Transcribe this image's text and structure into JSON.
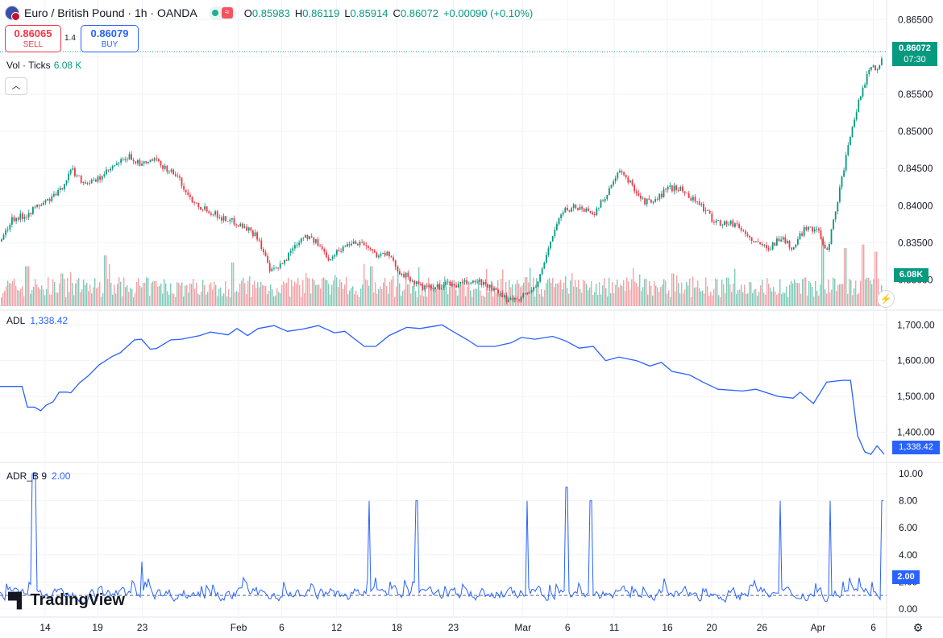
{
  "header": {
    "symbol": "Euro / British Pound · 1h · OANDA",
    "ohlc": [
      {
        "k": "O",
        "v": "0.85983"
      },
      {
        "k": "H",
        "v": "0.86119"
      },
      {
        "k": "L",
        "v": "0.85914"
      },
      {
        "k": "C",
        "v": "0.86072"
      },
      {
        "k": "",
        "v": "+0.00090 (+0.10%)"
      }
    ]
  },
  "trade": {
    "sell_price": "0.86065",
    "sell_label": "SELL",
    "spread": "1.4",
    "buy_price": "0.86079",
    "buy_label": "BUY"
  },
  "volume_legend": {
    "label": "Vol · Ticks",
    "value": "6.08 K"
  },
  "adl_legend": {
    "label": "ADL",
    "value": "1,338.42"
  },
  "adr_legend": {
    "label": "ADR_B 9",
    "value": "2.00"
  },
  "badges": {
    "last_price": "0.86072",
    "countdown": "07:30",
    "volume": "6.08K",
    "adl": "1,338.42",
    "adr": "2.00"
  },
  "colors": {
    "up": "#089981",
    "down": "#f23645",
    "indicator": "#2962ff",
    "grid": "#f0f3fa"
  },
  "brand": "TradingView",
  "chart_data": [
    {
      "type": "line",
      "name": "price",
      "title": "Euro / British Pound · 1h · OANDA",
      "y_ticks": [
        "0.86500",
        "0.86000",
        "0.85500",
        "0.85000",
        "0.84500",
        "0.84000",
        "0.83500",
        "0.83000"
      ],
      "y_tick_values": [
        0.865,
        0.86,
        0.855,
        0.85,
        0.845,
        0.84,
        0.835,
        0.83
      ],
      "ylim": [
        0.8265,
        0.8668
      ],
      "x_ticks": [
        "14",
        "19",
        "23",
        "Feb",
        "6",
        "12",
        "18",
        "23",
        "Mar",
        "6",
        "11",
        "16",
        "20",
        "26",
        "Apr",
        "6"
      ],
      "x_tick_pos": [
        0.0511,
        0.1104,
        0.161,
        0.2699,
        0.3186,
        0.3807,
        0.4489,
        0.5128,
        0.5914,
        0.6419,
        0.6946,
        0.7548,
        0.805,
        0.8618,
        0.9252,
        0.9878
      ],
      "x_positions": [
        0.0,
        0.013,
        0.026,
        0.04,
        0.053,
        0.066,
        0.08,
        0.093,
        0.106,
        0.119,
        0.132,
        0.146,
        0.159,
        0.172,
        0.185,
        0.199,
        0.212,
        0.225,
        0.238,
        0.251,
        0.265,
        0.278,
        0.291,
        0.305,
        0.318,
        0.331,
        0.344,
        0.357,
        0.371,
        0.384,
        0.397,
        0.41,
        0.423,
        0.437,
        0.45,
        0.463,
        0.476,
        0.49,
        0.503,
        0.516,
        0.529,
        0.542,
        0.556,
        0.569,
        0.582,
        0.595,
        0.608,
        0.621,
        0.634,
        0.647,
        0.66,
        0.673,
        0.687,
        0.7,
        0.713,
        0.726,
        0.739,
        0.752,
        0.765,
        0.778,
        0.791,
        0.805,
        0.818,
        0.831,
        0.844,
        0.857,
        0.87,
        0.883,
        0.896,
        0.91,
        0.923,
        0.935,
        0.945,
        0.955,
        0.965,
        0.975,
        0.985,
        0.992,
        1.0
      ],
      "values": [
        0.8352,
        0.8383,
        0.8386,
        0.8398,
        0.8407,
        0.8418,
        0.8449,
        0.8432,
        0.8432,
        0.8444,
        0.8456,
        0.8466,
        0.8454,
        0.8462,
        0.8452,
        0.8441,
        0.8413,
        0.84,
        0.8392,
        0.8383,
        0.8378,
        0.837,
        0.8358,
        0.831,
        0.832,
        0.8345,
        0.8362,
        0.835,
        0.833,
        0.8341,
        0.8352,
        0.835,
        0.8335,
        0.8335,
        0.8313,
        0.8301,
        0.829,
        0.8288,
        0.8295,
        0.8293,
        0.8297,
        0.8298,
        0.8288,
        0.8275,
        0.8275,
        0.8281,
        0.8296,
        0.835,
        0.839,
        0.8399,
        0.8395,
        0.8391,
        0.842,
        0.8445,
        0.843,
        0.8407,
        0.8404,
        0.8422,
        0.8425,
        0.8414,
        0.8402,
        0.8381,
        0.8376,
        0.8376,
        0.836,
        0.8347,
        0.8345,
        0.8358,
        0.8341,
        0.8372,
        0.8368,
        0.834,
        0.8399,
        0.8458,
        0.8514,
        0.856,
        0.8589,
        0.8585,
        0.8607
      ],
      "last": 0.86072
    },
    {
      "type": "bar",
      "name": "volume",
      "y_unit": "ticks",
      "last": 6080,
      "spikes": [
        [
          0.03,
          0.55
        ],
        [
          0.07,
          0.45
        ],
        [
          0.118,
          0.7
        ],
        [
          0.263,
          0.6
        ],
        [
          0.42,
          0.55
        ],
        [
          0.595,
          0.4
        ],
        [
          0.76,
          0.45
        ],
        [
          0.93,
          0.95
        ],
        [
          0.955,
          0.8
        ],
        [
          0.975,
          0.85
        ],
        [
          0.99,
          0.75
        ]
      ]
    },
    {
      "type": "line",
      "name": "ADL",
      "y_ticks": [
        "1,700.00",
        "1,600.00",
        "1,500.00",
        "1,400.00"
      ],
      "y_tick_values": [
        1700,
        1600,
        1500,
        1400
      ],
      "ylim": [
        1320,
        1730
      ],
      "x_positions": [
        0.0,
        0.025,
        0.031,
        0.039,
        0.046,
        0.052,
        0.06,
        0.067,
        0.076,
        0.08,
        0.09,
        0.1,
        0.112,
        0.127,
        0.136,
        0.152,
        0.16,
        0.17,
        0.177,
        0.193,
        0.205,
        0.226,
        0.238,
        0.258,
        0.268,
        0.28,
        0.292,
        0.31,
        0.325,
        0.342,
        0.36,
        0.378,
        0.39,
        0.412,
        0.425,
        0.44,
        0.46,
        0.475,
        0.5,
        0.512,
        0.529,
        0.54,
        0.56,
        0.578,
        0.59,
        0.605,
        0.625,
        0.64,
        0.655,
        0.671,
        0.685,
        0.7,
        0.72,
        0.735,
        0.748,
        0.76,
        0.78,
        0.795,
        0.812,
        0.84,
        0.855,
        0.88,
        0.897,
        0.905,
        0.92,
        0.935,
        0.953,
        0.962,
        0.97,
        0.978,
        0.985,
        0.992,
        1.0
      ],
      "values": [
        1528,
        1528,
        1470,
        1470,
        1460,
        1475,
        1485,
        1512,
        1512,
        1510,
        1538,
        1558,
        1588,
        1612,
        1622,
        1658,
        1660,
        1632,
        1634,
        1658,
        1660,
        1670,
        1680,
        1672,
        1690,
        1670,
        1690,
        1698,
        1682,
        1688,
        1698,
        1678,
        1682,
        1640,
        1640,
        1670,
        1693,
        1690,
        1700,
        1682,
        1658,
        1640,
        1640,
        1650,
        1665,
        1660,
        1668,
        1655,
        1635,
        1640,
        1600,
        1610,
        1600,
        1585,
        1595,
        1570,
        1560,
        1540,
        1520,
        1515,
        1520,
        1500,
        1495,
        1512,
        1480,
        1540,
        1545,
        1545,
        1390,
        1345,
        1338,
        1362,
        1338
      ],
      "last": 1338.42
    },
    {
      "type": "line",
      "name": "ADR_B 9",
      "y_ticks": [
        "10.00",
        "8.00",
        "6.00",
        "4.00",
        "2.00",
        "0.00"
      ],
      "y_tick_values": [
        10,
        8,
        6,
        4,
        2,
        0
      ],
      "ylim": [
        -0.6,
        10.6
      ],
      "baseline": 1,
      "spikes": [
        [
          0.036,
          10
        ],
        [
          0.039,
          10
        ],
        [
          0.16,
          3.5
        ],
        [
          0.417,
          8
        ],
        [
          0.471,
          8
        ],
        [
          0.596,
          8
        ],
        [
          0.641,
          9
        ],
        [
          0.668,
          8
        ],
        [
          0.883,
          8
        ],
        [
          0.939,
          8
        ],
        [
          0.998,
          8
        ]
      ],
      "last": 2.0
    }
  ]
}
